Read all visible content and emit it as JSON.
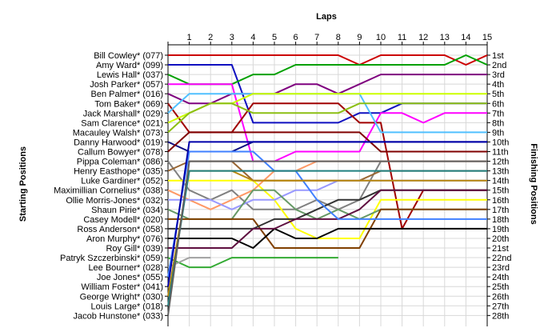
{
  "chart_data": {
    "type": "line",
    "title": "Laps",
    "ylabel_left": "Starting Positions",
    "ylabel_right": "Finishing Positions",
    "x": [
      0,
      1,
      2,
      3,
      4,
      5,
      6,
      7,
      8,
      9,
      10,
      11,
      12,
      13,
      14,
      15
    ],
    "x_tick_labels": [
      "1",
      "2",
      "3",
      "4",
      "5",
      "6",
      "7",
      "8",
      "9",
      "10",
      "11",
      "12",
      "13",
      "14",
      "15"
    ],
    "finishing_labels": [
      "1st",
      "2nd",
      "3rd",
      "4th",
      "5th",
      "6th",
      "7th",
      "8th",
      "9th",
      "10th",
      "11th",
      "12th",
      "13th",
      "14th",
      "15th",
      "16th",
      "17th",
      "18th",
      "19th",
      "20th",
      "21st",
      "22nd",
      "23rd",
      "24th",
      "25th",
      "26th",
      "27th",
      "28th"
    ],
    "grid": true,
    "series": [
      {
        "name": "Bill Cowley* (077)",
        "color": "#cc0000",
        "positions": [
          1,
          1,
          1,
          1,
          1,
          1,
          1,
          1,
          1,
          2,
          1,
          1,
          1,
          1,
          2,
          1
        ]
      },
      {
        "name": "Amy Ward* (099)",
        "color": "#1010c0",
        "positions": [
          2,
          2,
          2,
          2,
          8,
          8,
          8,
          8,
          8,
          7,
          7,
          6,
          6,
          6,
          6,
          6
        ]
      },
      {
        "name": "Lewis Hall* (037)",
        "color": "#00a000",
        "positions": [
          3,
          4,
          4,
          4,
          3,
          3,
          2,
          2,
          2,
          2,
          2,
          2,
          2,
          2,
          1,
          2
        ]
      },
      {
        "name": "Josh Parker* (057)",
        "color": "#ff00ff",
        "positions": [
          4,
          4,
          4,
          4,
          12,
          12,
          11,
          11,
          11,
          11,
          7,
          7,
          8,
          7,
          7,
          7
        ]
      },
      {
        "name": "Ben Palmer* (016)",
        "color": "#7f007f",
        "positions": [
          5,
          6,
          6,
          5,
          5,
          5,
          4,
          4,
          5,
          4,
          3,
          3,
          3,
          3,
          3,
          3
        ]
      },
      {
        "name": "Tom Baker* (069)",
        "color": "#a00000",
        "positions": [
          6,
          9,
          9,
          9,
          6,
          6,
          6,
          6,
          6,
          8,
          8,
          19,
          15,
          15,
          15,
          15
        ]
      },
      {
        "name": "Jack Marshall* (029)",
        "color": "#50c0ff",
        "positions": [
          7,
          5,
          5,
          5,
          5,
          5,
          5,
          5,
          5,
          5,
          9,
          9,
          9,
          9,
          9,
          9
        ]
      },
      {
        "name": "Sam Clarence* (021)",
        "color": "#ccff00",
        "positions": [
          8,
          7,
          6,
          6,
          5,
          5,
          5,
          5,
          5,
          5,
          5,
          5,
          5,
          5,
          5,
          5
        ]
      },
      {
        "name": "Macauley Walsh* (073)",
        "color": "#8cbf14",
        "positions": [
          9,
          7,
          6,
          6,
          7,
          7,
          7,
          7,
          7,
          6,
          6,
          6,
          6,
          6,
          6,
          6
        ]
      },
      {
        "name": "Danny Harwood* (019)",
        "color": "#0a0a80",
        "positions": [
          10,
          11,
          11,
          11,
          10,
          10,
          10,
          10,
          10,
          10,
          10,
          10,
          10,
          10,
          10,
          10
        ]
      },
      {
        "name": "Callum Bowyer* (078)",
        "color": "#800000",
        "positions": [
          11,
          9,
          9,
          9,
          9,
          9,
          9,
          9,
          9,
          9,
          11,
          11,
          11,
          11,
          11,
          11
        ]
      },
      {
        "name": "Pippa Coleman* (086)",
        "color": "#808080",
        "positions": [
          12,
          15,
          16,
          15,
          17,
          17,
          17,
          16,
          17,
          16,
          12,
          12,
          12,
          12,
          12,
          12
        ]
      },
      {
        "name": "Henry Easthope* (035)",
        "color": "#996633",
        "positions": [
          13,
          12,
          12,
          12,
          14,
          14,
          14,
          14,
          14,
          14,
          13,
          13,
          13,
          13,
          13,
          13
        ]
      },
      {
        "name": "Luke Gardiner* (052)",
        "color": "#ffff00",
        "positions": [
          14,
          14,
          14,
          14,
          14,
          16,
          19,
          20,
          20,
          20,
          16,
          16,
          16,
          16,
          16,
          16
        ]
      },
      {
        "name": "Maximillian Cornelius* (038)",
        "color": "#ff9966",
        "positions": [
          15,
          16,
          17,
          16,
          15,
          13,
          13,
          12,
          12,
          12,
          12,
          12,
          12,
          12,
          12,
          12
        ]
      },
      {
        "name": "Ollie Morris-Jones* (032)",
        "color": "#9999ff",
        "positions": [
          16,
          16,
          16,
          17,
          16,
          16,
          15,
          15,
          14,
          14,
          14,
          14,
          14,
          14,
          14,
          14
        ]
      },
      {
        "name": "Shaun Pirie* (034)",
        "color": "#669966",
        "positions": [
          17,
          18,
          18,
          18,
          15,
          15,
          17,
          18,
          17,
          18,
          17,
          17,
          17,
          17,
          17,
          17
        ]
      },
      {
        "name": "Casey Modell* (020)",
        "color": "#804000",
        "positions": [
          18,
          18,
          18,
          18,
          18,
          21,
          21,
          21,
          21,
          21,
          17,
          17,
          17,
          17,
          17,
          17
        ]
      },
      {
        "name": "Ross Anderson* (058)",
        "color": "#333333",
        "positions": [
          19,
          19,
          19,
          19,
          19,
          18,
          18,
          17,
          16,
          16,
          15,
          15,
          15,
          15,
          15,
          15
        ]
      },
      {
        "name": "Aron Murphy* (076)",
        "color": "#000000",
        "positions": [
          20,
          20,
          20,
          20,
          21,
          19,
          20,
          20,
          19,
          19,
          19,
          19,
          19,
          19,
          19,
          19
        ]
      },
      {
        "name": "Roy Gill* (039)",
        "color": "#5f0f40",
        "positions": [
          21,
          21,
          21,
          21,
          19,
          19,
          18,
          18,
          18,
          17,
          15,
          15,
          15,
          15,
          15,
          15
        ]
      },
      {
        "name": "Patryk Szczerbinski* (059)",
        "color": "#33aa33",
        "positions": [
          22,
          23,
          23,
          22,
          22,
          22,
          22,
          22,
          22
        ]
      },
      {
        "name": "Lee Bourner* (028)",
        "color": "#a0a0a0",
        "positions": [
          23,
          22,
          22
        ]
      },
      {
        "name": "Joe Jones* (055)",
        "color": "#4080ff",
        "positions": [
          24,
          11,
          11,
          11,
          11,
          13,
          13,
          16,
          18,
          18,
          18,
          18,
          18,
          18,
          18,
          18
        ]
      },
      {
        "name": "William Foster* (041)",
        "color": "#0000aa",
        "positions": [
          25,
          10,
          10,
          10,
          10,
          10,
          10,
          10,
          10,
          10,
          10,
          10,
          10,
          10,
          10,
          10
        ]
      },
      {
        "name": "George Wright* (030)",
        "color": "#b8860b",
        "positions": [
          26,
          13,
          13,
          13,
          14,
          14,
          14,
          14,
          14,
          14,
          14,
          14,
          14,
          14,
          14,
          14
        ]
      },
      {
        "name": "Louis Large* (018)",
        "color": "#208080",
        "positions": [
          27,
          13,
          13,
          13,
          13,
          13,
          13,
          13,
          13,
          13,
          13,
          13,
          13,
          13,
          13,
          13
        ]
      },
      {
        "name": "Jacob Hunstone* (033)",
        "color": "#606060",
        "positions": [
          28,
          12,
          12,
          12,
          12,
          12,
          12,
          12,
          12,
          12,
          12,
          12,
          12,
          12,
          12,
          12
        ]
      }
    ]
  }
}
